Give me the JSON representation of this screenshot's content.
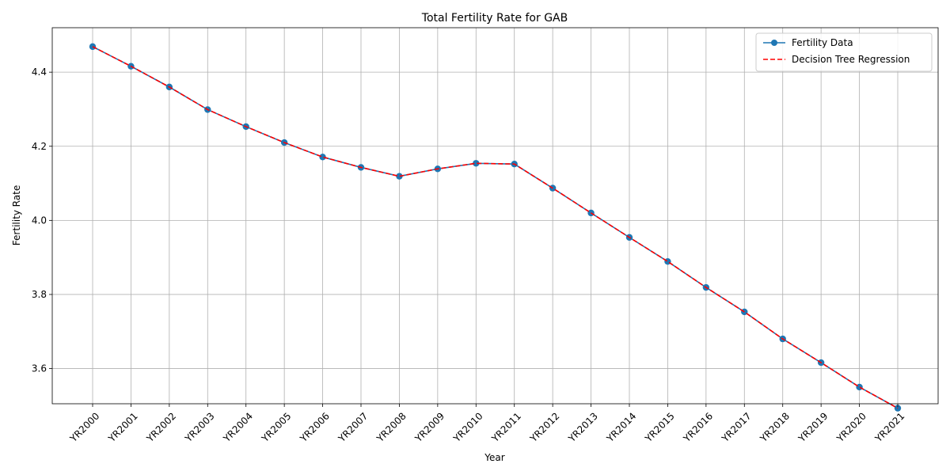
{
  "chart_data": {
    "type": "line",
    "title": "Total Fertility Rate for GAB",
    "xlabel": "Year",
    "ylabel": "Fertility Rate",
    "categories": [
      "YR2000",
      "YR2001",
      "YR2002",
      "YR2003",
      "YR2004",
      "YR2005",
      "YR2006",
      "YR2007",
      "YR2008",
      "YR2009",
      "YR2010",
      "YR2011",
      "YR2012",
      "YR2013",
      "YR2014",
      "YR2015",
      "YR2016",
      "YR2017",
      "YR2018",
      "YR2019",
      "YR2020",
      "YR2021"
    ],
    "ylim": [
      3.505,
      4.52
    ],
    "yticks": [
      "3.6",
      "3.8",
      "4.0",
      "4.2",
      "4.4"
    ],
    "grid": true,
    "legend_position": "top-right",
    "series": [
      {
        "name": "Fertility Data",
        "color": "#1f77b4",
        "style": "solid-with-circle-markers",
        "values": [
          4.469,
          4.416,
          4.36,
          4.299,
          4.253,
          4.21,
          4.171,
          4.143,
          4.119,
          4.139,
          4.154,
          4.152,
          4.087,
          4.02,
          3.954,
          3.889,
          3.819,
          3.753,
          3.68,
          3.616,
          3.55,
          3.493
        ]
      },
      {
        "name": "Decision Tree Regression",
        "color": "#ff0000",
        "style": "dashed",
        "values": [
          4.469,
          4.416,
          4.36,
          4.299,
          4.253,
          4.21,
          4.171,
          4.143,
          4.119,
          4.139,
          4.154,
          4.152,
          4.087,
          4.02,
          3.954,
          3.889,
          3.819,
          3.753,
          3.68,
          3.616,
          3.55,
          3.493
        ]
      }
    ]
  }
}
